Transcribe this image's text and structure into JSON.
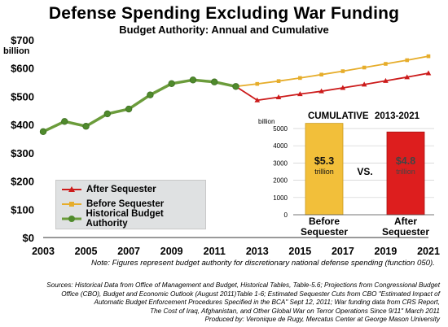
{
  "title": "Defense Spending Excluding War Funding",
  "subtitle": "Budget Authority: Annual and Cumulative",
  "note": "Note: Figures represent budget authority for discretionary national defense spending (function 050).",
  "sources": [
    "Sources: Historical Data from Office of Management and Budget, Historical Tables, Table-5.6; Projections from Congressional Budget",
    "Office (CBO), Budget and Economic Outlook (August 2011)Table 1-6; Estimated Sequester Cuts from CBO \"Estimated Impact of",
    "Automatic Budget Enforcement Procedures Specified in the BCA\" Sept 12, 2011; War funding data from CRS Report,",
    "The Cost of Iraq, Afghanistan, and Other Global War on Terror Operations Since 9/11\" March 2011",
    "Produced by: Veronique de Rugy, Mercatus Center at George Mason University"
  ],
  "colors": {
    "after_sequester": "#cc1b1b",
    "before_sequester": "#e6ad2b",
    "historical": "#6b9c3b",
    "bar_before": "#f2bf3a",
    "bar_after": "#dd1e1e"
  },
  "chart_data": [
    {
      "type": "line",
      "ylabel": "billion",
      "ylim": [
        0,
        700
      ],
      "yticks": [
        0,
        100,
        200,
        300,
        400,
        500,
        600,
        700
      ],
      "ytick_labels": [
        "$0",
        "$100",
        "$200",
        "$300",
        "$400",
        "$500",
        "$600",
        "$700"
      ],
      "xlim": [
        2003,
        2021
      ],
      "xticks": [
        2003,
        2005,
        2007,
        2009,
        2011,
        2013,
        2015,
        2017,
        2019,
        2021
      ],
      "legend_position": "bottom-left",
      "series": [
        {
          "name": "After Sequester",
          "color_key": "after_sequester",
          "marker": "triangle",
          "x": [
            2012,
            2013,
            2014,
            2015,
            2016,
            2017,
            2018,
            2019,
            2020,
            2021
          ],
          "y": [
            535,
            486,
            497,
            508,
            518,
            530,
            542,
            555,
            568,
            582
          ]
        },
        {
          "name": "Before Sequester",
          "color_key": "before_sequester",
          "marker": "square",
          "x": [
            2012,
            2013,
            2014,
            2015,
            2016,
            2017,
            2018,
            2019,
            2020,
            2021
          ],
          "y": [
            535,
            544,
            554,
            565,
            577,
            589,
            602,
            615,
            628,
            642
          ]
        },
        {
          "name": "Historical Budget Authority",
          "color_key": "historical",
          "marker": "circle",
          "x": [
            2003,
            2004,
            2005,
            2006,
            2007,
            2008,
            2009,
            2010,
            2011,
            2012
          ],
          "y": [
            375,
            411,
            394,
            438,
            455,
            505,
            545,
            558,
            551,
            535
          ]
        }
      ]
    },
    {
      "type": "bar",
      "title": "CUMULATIVE",
      "title_range": "2013-2021",
      "ylabel": "billion",
      "ylim": [
        0,
        5000
      ],
      "yticks": [
        0,
        1000,
        2000,
        3000,
        4000,
        5000
      ],
      "categories": [
        "Before Sequester",
        "After Sequester"
      ],
      "values": [
        5300,
        4800
      ],
      "value_labels": [
        {
          "amount": "$5.3",
          "unit": "trillion"
        },
        {
          "amount": "$4.8",
          "unit": "trillion"
        }
      ],
      "vs_label": "VS."
    }
  ]
}
